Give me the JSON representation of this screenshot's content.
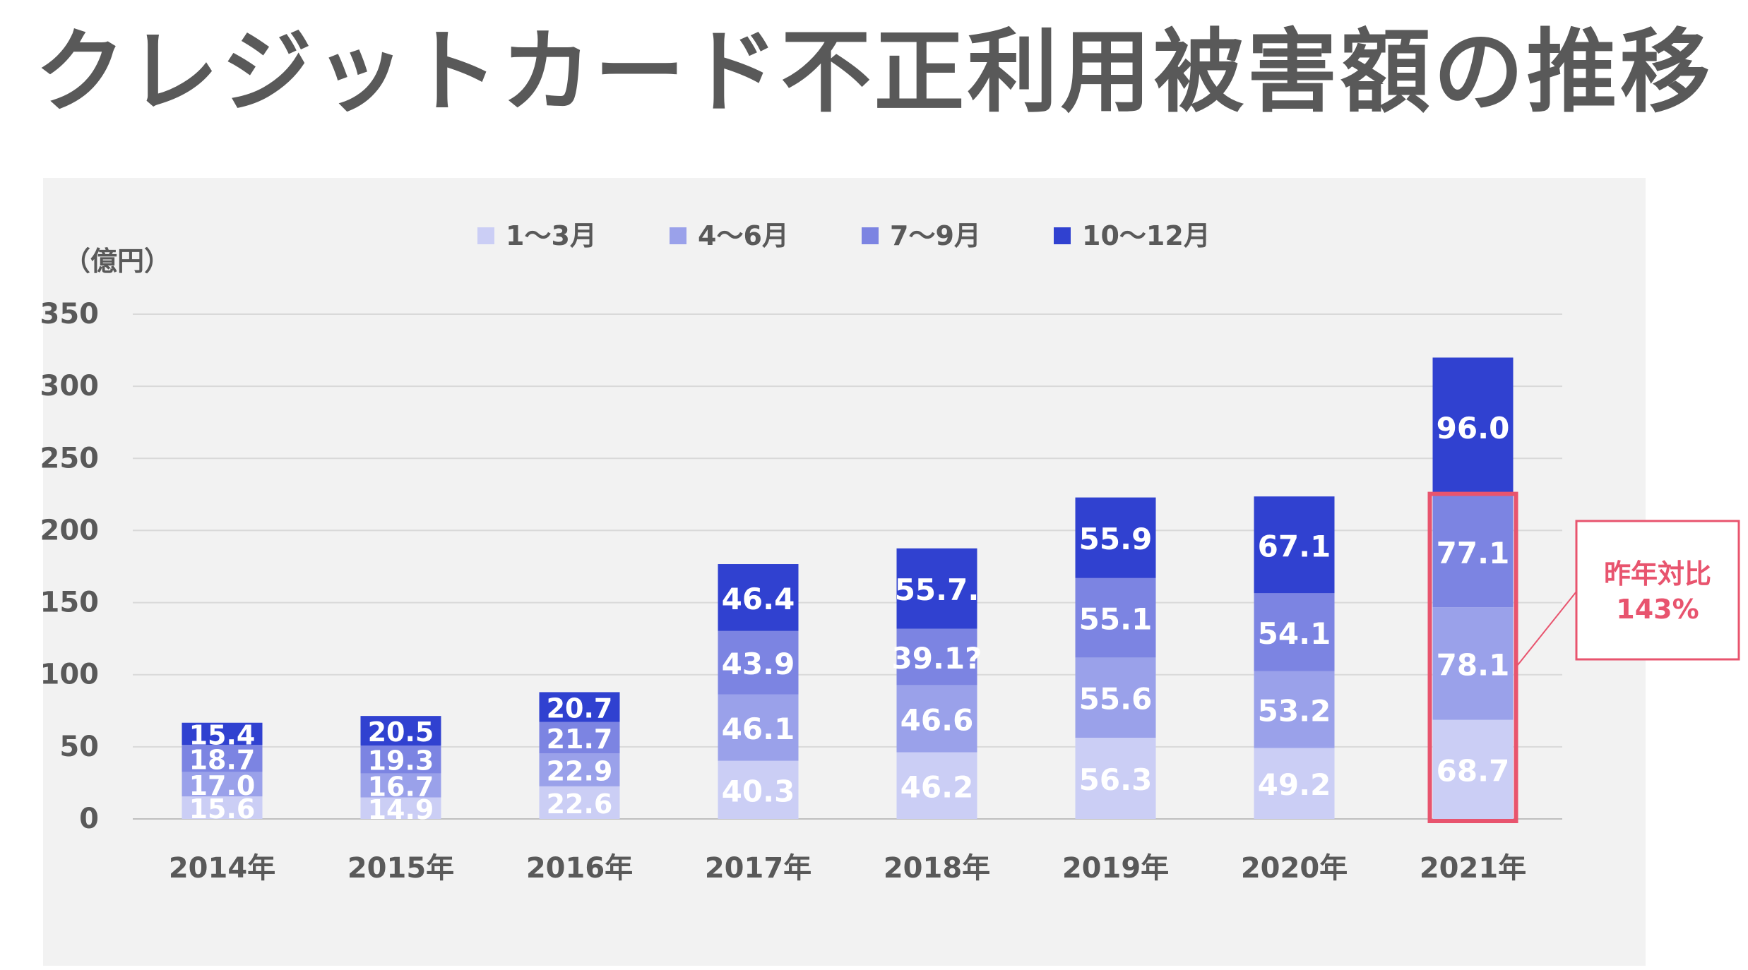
{
  "title": "クレジットカード不正利用被害額の推移",
  "chart_data": {
    "type": "bar",
    "stacked": true,
    "ylabel": "（億円）",
    "ylim": [
      0,
      350
    ],
    "yticks": [
      "0",
      "50",
      "100",
      "150",
      "200",
      "250",
      "300",
      "350"
    ],
    "grid": true,
    "legend_position": "top",
    "categories": [
      "2014年",
      "2015年",
      "2016年",
      "2017年",
      "2018年",
      "2019年",
      "2020年",
      "2021年"
    ],
    "series": [
      {
        "name": "1〜3月",
        "color": "#cbcef5",
        "values": [
          15.6,
          14.9,
          22.6,
          40.3,
          46.2,
          56.3,
          49.2,
          68.7
        ],
        "labels": [
          "15.6",
          "14.9",
          "22.6",
          "40.3",
          "46.2",
          "56.3",
          "49.2",
          "68.7"
        ]
      },
      {
        "name": "4〜6月",
        "color": "#9aa1ea",
        "values": [
          17.0,
          16.7,
          22.9,
          46.1,
          46.6,
          55.6,
          53.2,
          78.1
        ],
        "labels": [
          "17.0",
          "16.7",
          "22.9",
          "46.1",
          "46.6",
          "55.6",
          "53.2",
          "78.1"
        ]
      },
      {
        "name": "7〜9月",
        "color": "#7c84e2",
        "values": [
          18.7,
          19.3,
          21.7,
          43.9,
          39.1,
          55.1,
          54.1,
          77.1
        ],
        "labels": [
          "18.7",
          "19.3",
          "21.7",
          "43.9",
          "39.1?",
          "55.1",
          "54.1",
          "77.1"
        ]
      },
      {
        "name": "10〜12月",
        "color": "#3041d0",
        "values": [
          15.4,
          20.5,
          20.7,
          46.4,
          55.7,
          55.9,
          67.1,
          96.0
        ],
        "labels": [
          "15.4",
          "20.5",
          "20.7",
          "46.4",
          "55.7.",
          "55.9",
          "67.1",
          "96.0"
        ]
      }
    ],
    "annotation": {
      "text_lines": [
        "昨年対比",
        "143%"
      ],
      "color": "#e8546e",
      "category": "2021年",
      "highlight_series_count": 3
    }
  }
}
